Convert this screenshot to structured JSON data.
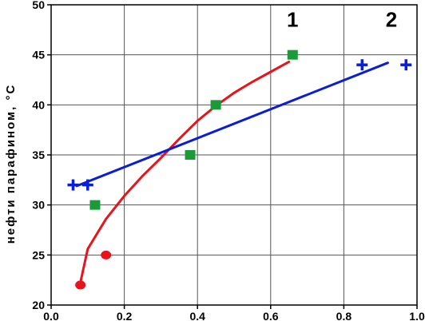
{
  "chart_data": {
    "type": "scatter",
    "title": "",
    "xlabel": "",
    "ylabel": "нефти парафином, °С",
    "xlim": [
      0.0,
      1.0
    ],
    "ylim": [
      20,
      50
    ],
    "x_ticks": [
      "0.0",
      "0.2",
      "0.4",
      "0.6",
      "0.8",
      "1.0"
    ],
    "y_ticks": [
      "20",
      "25",
      "30",
      "35",
      "40",
      "45",
      "50"
    ],
    "grid": true,
    "series": [
      {
        "label": "1",
        "marker": "circle",
        "color": "#e8141c",
        "points": [
          [
            0.08,
            22
          ],
          [
            0.15,
            25
          ]
        ]
      },
      {
        "label": "1",
        "marker": "square",
        "color": "#1c9a3a",
        "points": [
          [
            0.12,
            30
          ],
          [
            0.38,
            35
          ],
          [
            0.45,
            40
          ],
          [
            0.66,
            45
          ]
        ]
      },
      {
        "label": "2",
        "marker": "plus",
        "color": "#0a1ed6",
        "points": [
          [
            0.06,
            32
          ],
          [
            0.1,
            32
          ],
          [
            0.85,
            44
          ],
          [
            0.97,
            44
          ]
        ]
      }
    ],
    "fit_lines": [
      {
        "label": "1",
        "color": "#e8141c",
        "kind": "curve",
        "points": [
          [
            0.078,
            21.9
          ],
          [
            0.1,
            25.6
          ],
          [
            0.15,
            28.6
          ],
          [
            0.2,
            30.9
          ],
          [
            0.25,
            32.9
          ],
          [
            0.3,
            34.7
          ],
          [
            0.35,
            36.6
          ],
          [
            0.4,
            38.4
          ],
          [
            0.45,
            39.9
          ],
          [
            0.5,
            41.2
          ],
          [
            0.55,
            42.3
          ],
          [
            0.6,
            43.3
          ],
          [
            0.65,
            44.3
          ]
        ]
      },
      {
        "label": "2",
        "color": "#0a1ed6",
        "kind": "linear",
        "points": [
          [
            0.07,
            31.9
          ],
          [
            0.92,
            44.2
          ]
        ]
      }
    ],
    "annotations": [
      {
        "text": "1",
        "x": 0.66,
        "y": 47.8
      },
      {
        "text": "2",
        "x": 0.93,
        "y": 47.8
      }
    ]
  }
}
